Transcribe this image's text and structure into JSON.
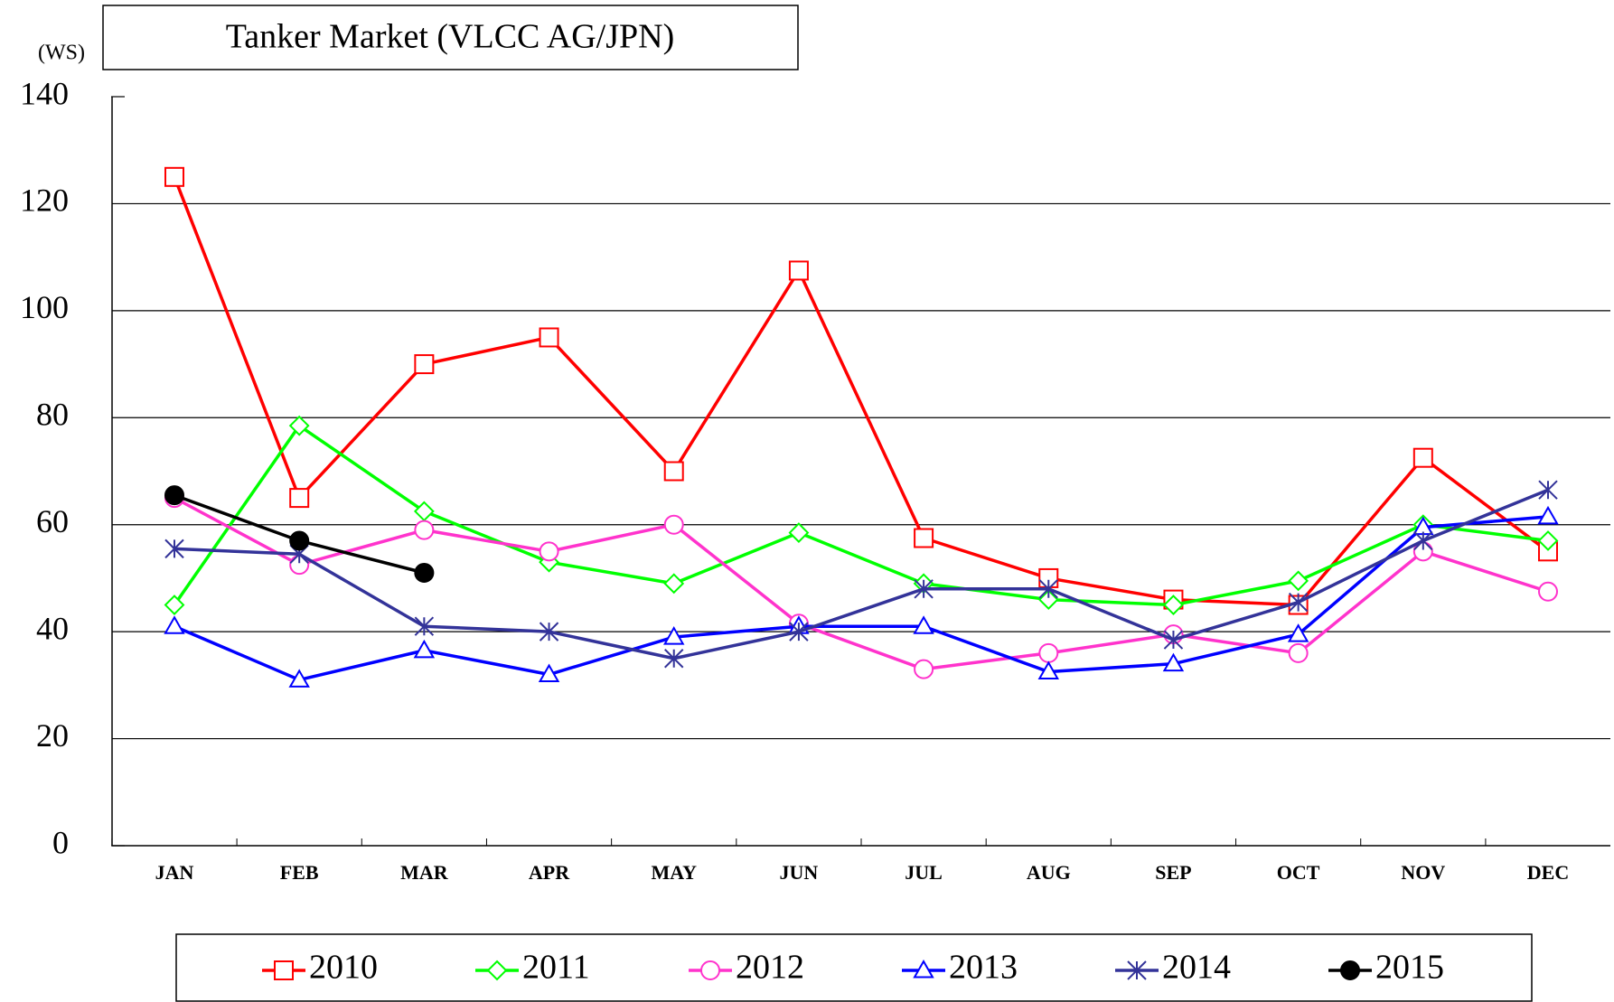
{
  "chart_data": {
    "type": "line",
    "title": "Tanker Market (VLCC AG/JPN)",
    "y_label": "(WS)",
    "categories": [
      "JAN",
      "FEB",
      "MAR",
      "APR",
      "MAY",
      "JUN",
      "JUL",
      "AUG",
      "SEP",
      "OCT",
      "NOV",
      "DEC"
    ],
    "ylim": [
      0,
      140
    ],
    "yticks": [
      0,
      20,
      40,
      60,
      80,
      100,
      120,
      140
    ],
    "grid": true,
    "legend": "bottom",
    "series": [
      {
        "name": "2010",
        "color": "#ff0000",
        "marker": "square",
        "values": [
          125,
          65,
          90,
          95,
          70,
          107.5,
          57.5,
          50,
          46,
          45,
          72.5,
          55
        ]
      },
      {
        "name": "2011",
        "color": "#00ff00",
        "marker": "diamond",
        "values": [
          45,
          78.5,
          62.5,
          53,
          49,
          58.5,
          49,
          46,
          45,
          49.5,
          60,
          57
        ]
      },
      {
        "name": "2012",
        "color": "#ff33cc",
        "marker": "circle",
        "values": [
          65,
          52.5,
          59,
          55,
          60,
          41.5,
          33,
          36,
          39.5,
          36,
          55,
          47.5
        ]
      },
      {
        "name": "2013",
        "color": "#0000ff",
        "marker": "triangle",
        "values": [
          41,
          31,
          36.5,
          32,
          39,
          41,
          41,
          32.5,
          34,
          39.5,
          59.5,
          61.5
        ]
      },
      {
        "name": "2014",
        "color": "#333399",
        "marker": "asterisk",
        "values": [
          55.5,
          54.5,
          41,
          40,
          35,
          40,
          48,
          48,
          38.5,
          45.5,
          57,
          66.5
        ]
      },
      {
        "name": "2015",
        "color": "#000000",
        "marker": "dot",
        "values": [
          65.5,
          57,
          51,
          null,
          null,
          null,
          null,
          null,
          null,
          null,
          null,
          null
        ]
      }
    ]
  }
}
